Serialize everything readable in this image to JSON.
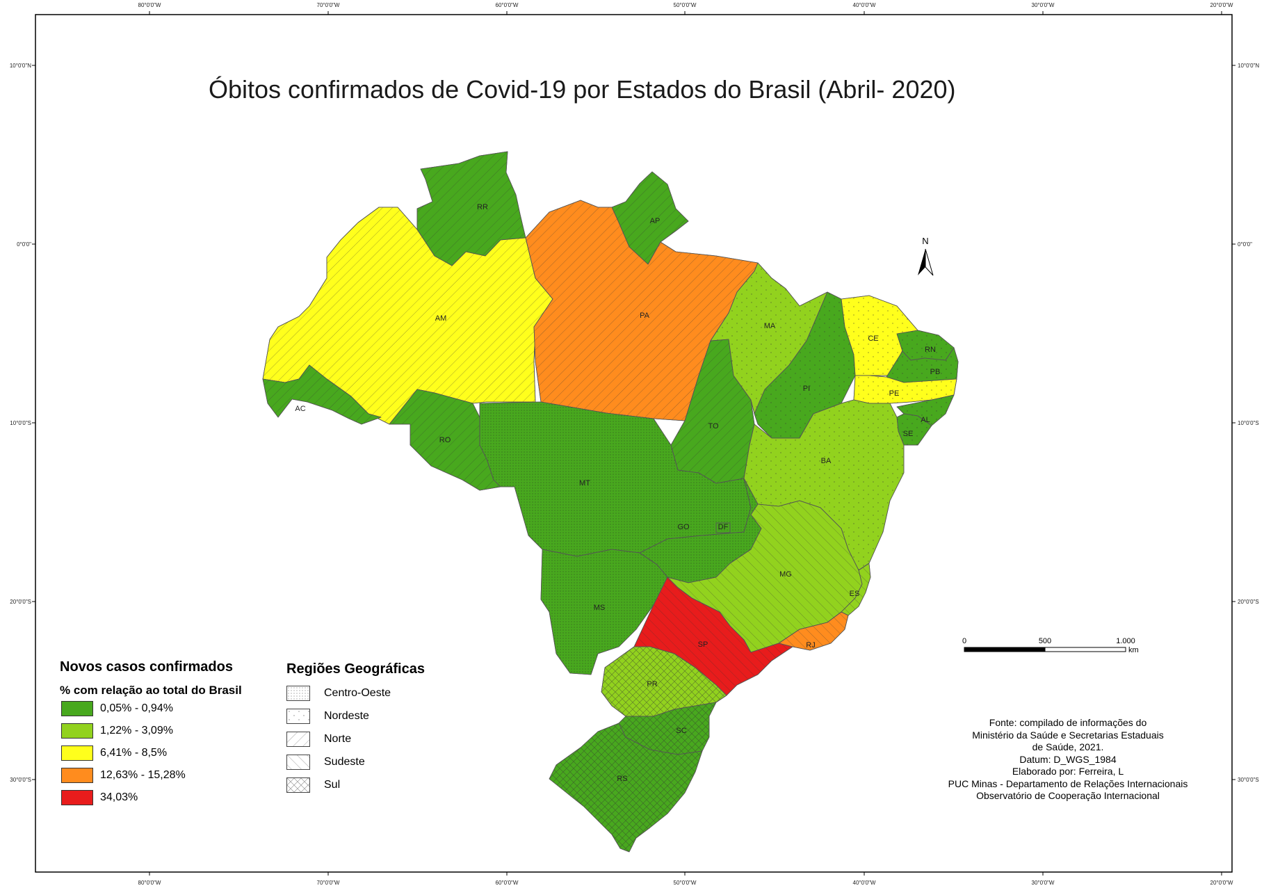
{
  "title": "Óbitos confirmados de Covid-19 por Estados do Brasil (Abril- 2020)",
  "graticule": {
    "top": [
      "80°0'0\"W",
      "70°0'0\"W",
      "60°0'0\"W",
      "50°0'0\"W",
      "40°0'0\"W",
      "30°0'0\"W",
      "20°0'0\"W"
    ],
    "bottom": [
      "80°0'0\"W",
      "70°0'0\"W",
      "60°0'0\"W",
      "50°0'0\"W",
      "40°0'0\"W",
      "30°0'0\"W",
      "20°0'0\"W"
    ],
    "left": [
      "10°0'0\"N",
      "0°0'0\"",
      "10°0'0\"S",
      "20°0'0\"S",
      "30°0'0\"S"
    ],
    "right": [
      "10°0'0\"N",
      "0°0'0\"",
      "10°0'0\"S",
      "20°0'0\"S",
      "30°0'0\"S"
    ]
  },
  "states": {
    "RR": "RR",
    "AP": "AP",
    "AM": "AM",
    "PA": "PA",
    "MA": "MA",
    "CE": "CE",
    "RN": "RN",
    "PB": "PB",
    "PE": "PE",
    "PI": "PI",
    "AL": "AL",
    "SE": "SE",
    "AC": "AC",
    "RO": "RO",
    "TO": "TO",
    "MT": "MT",
    "BA": "BA",
    "GO": "GO",
    "DF": "DF",
    "MG": "MG",
    "ES": "ES",
    "MS": "MS",
    "SP": "SP",
    "RJ": "RJ",
    "PR": "PR",
    "SC": "SC",
    "RS": "RS"
  },
  "north_arrow": {
    "label": "N"
  },
  "scale_bar": {
    "ticks": [
      "0",
      "500",
      "1.000"
    ],
    "unit": "km"
  },
  "legend": {
    "title": "Novos casos confirmados",
    "subtitle": "% com relação ao total do Brasil",
    "classes": [
      {
        "label": "0,05% - 0,94%",
        "color": "#48a81e"
      },
      {
        "label": "1,22% - 3,09%",
        "color": "#92d21e"
      },
      {
        "label": "6,41% - 8,5%",
        "color": "#ffff1c"
      },
      {
        "label": "12,63% - 15,28%",
        "color": "#ff8c1e"
      },
      {
        "label": "34,03%",
        "color": "#e81c1c"
      }
    ]
  },
  "regions_legend": {
    "title": "Regiões Geográficas",
    "items": [
      {
        "label": "Centro-Oeste",
        "pattern": "dots"
      },
      {
        "label": "Nordeste",
        "pattern": "sparse-dots"
      },
      {
        "label": "Norte",
        "pattern": "diagonal-forward"
      },
      {
        "label": "Sudeste",
        "pattern": "diagonal-back"
      },
      {
        "label": "Sul",
        "pattern": "crosshatch"
      }
    ]
  },
  "source": {
    "lines": [
      "Fonte: compilado de informações do",
      "Ministério da Saúde e Secretarias Estaduais",
      "de Saúde, 2021.",
      "Datum: D_WGS_1984",
      "Elaborado por: Ferreira, L",
      "PUC Minas - Departamento de Relações Internacionais",
      "Observatório de Cooperação Internacional"
    ]
  }
}
